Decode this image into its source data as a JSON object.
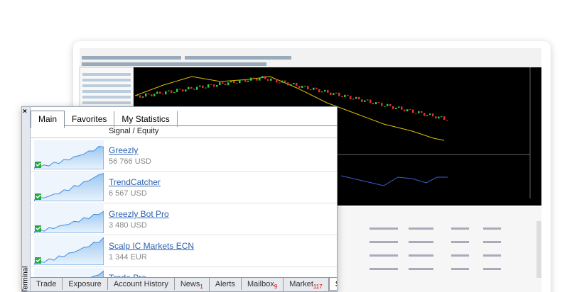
{
  "terminal_label": "Terminal",
  "tabs": [
    "Main",
    "Favorites",
    "My Statistics"
  ],
  "column_header": "Signal / Equity",
  "signals": [
    {
      "name": "Greezly",
      "amount": "56 766 USD"
    },
    {
      "name": "TrendCatcher",
      "amount": "6 567 USD"
    },
    {
      "name": "Greezly Bot Pro",
      "amount": "3 480 USD"
    },
    {
      "name": "Scalp IC Markets ECN",
      "amount": "1 344 EUR"
    },
    {
      "name": "Trade Pro",
      "amount": ""
    }
  ],
  "bottom_tabs": [
    {
      "label": "Trade"
    },
    {
      "label": "Exposure"
    },
    {
      "label": "Account History"
    },
    {
      "label": "News",
      "badge": 1
    },
    {
      "label": "Alerts"
    },
    {
      "label": "Mailbox",
      "badge": 9
    },
    {
      "label": "Market",
      "badge": 117
    },
    {
      "label": "Signals"
    }
  ]
}
